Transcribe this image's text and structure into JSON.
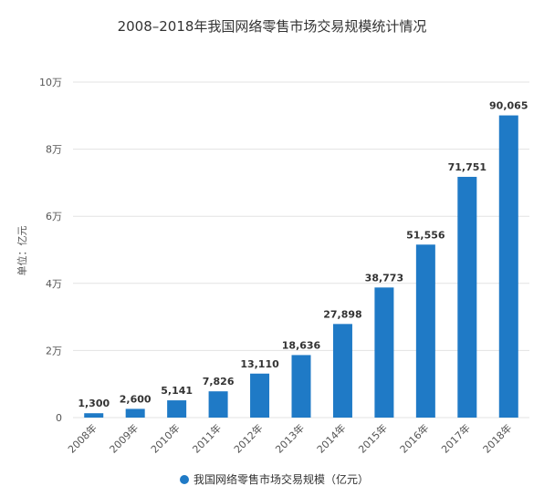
{
  "chart_data": {
    "type": "bar",
    "title": "2008–2018年我国网络零售市场交易规模统计情况",
    "ylabel": "单位：亿元",
    "xlabel": "",
    "categories": [
      "2008年",
      "2009年",
      "2010年",
      "2011年",
      "2012年",
      "2013年",
      "2014年",
      "2015年",
      "2016年",
      "2017年",
      "2018年"
    ],
    "series": [
      {
        "name": "我国网络零售市场交易规模（亿元）",
        "values": [
          1300,
          2600,
          5141,
          7826,
          13110,
          18636,
          27898,
          38773,
          51556,
          71751,
          90065
        ]
      }
    ],
    "data_labels": [
      "1,300",
      "2,600",
      "5,141",
      "7,826",
      "13,110",
      "18,636",
      "27,898",
      "38,773",
      "51,556",
      "71,751",
      "90,065"
    ],
    "ylim": [
      0,
      100000
    ],
    "yticks": [
      0,
      20000,
      40000,
      60000,
      80000,
      100000
    ],
    "ytick_labels": [
      "0",
      "2万",
      "4万",
      "6万",
      "8万",
      "10万"
    ],
    "grid": true,
    "legend_position": "bottom",
    "colors": {
      "bar": "#1f7ac6",
      "grid": "#e3e3e3",
      "text": "#333333",
      "axis_text": "#555555"
    }
  }
}
